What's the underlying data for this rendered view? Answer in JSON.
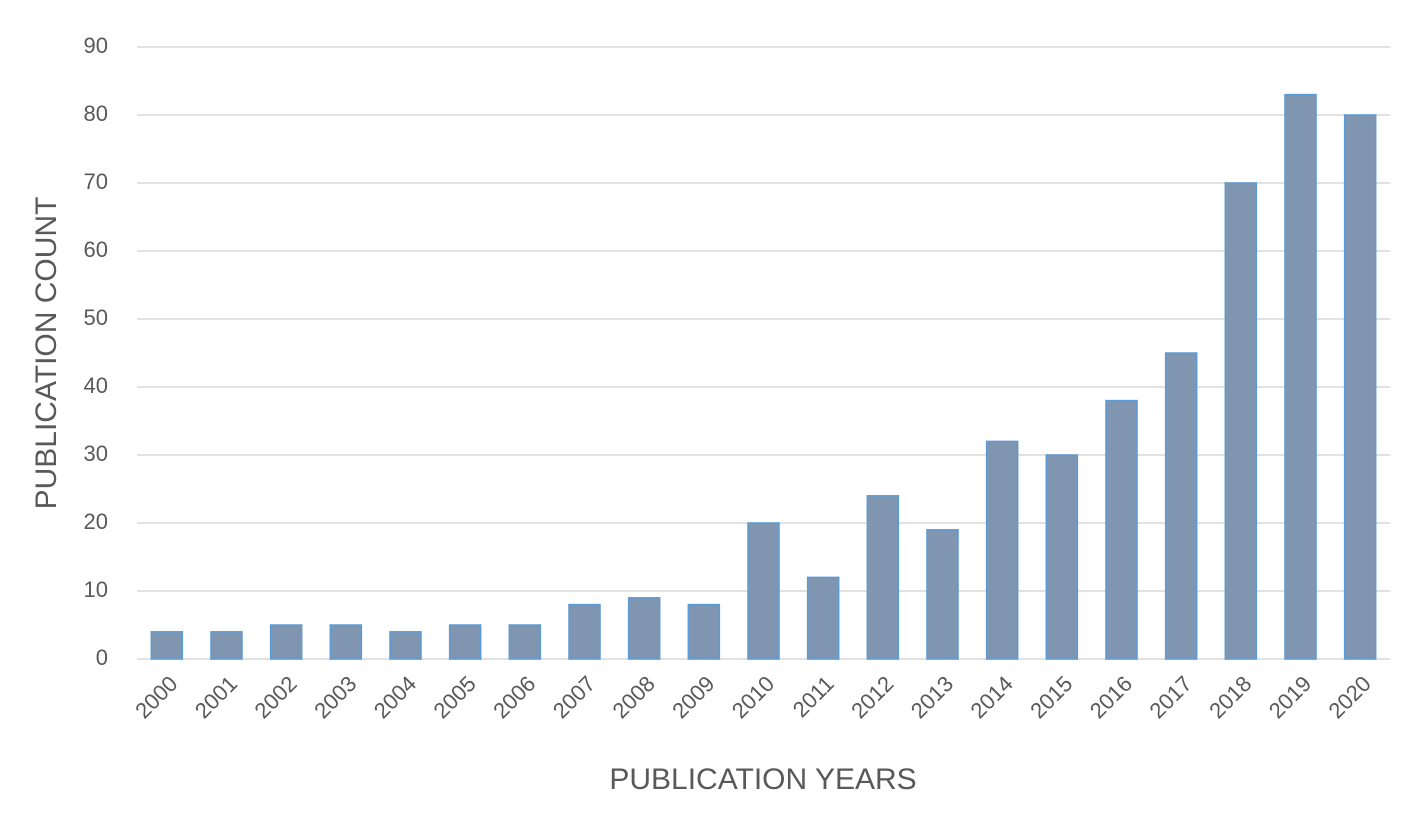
{
  "chart_data": {
    "type": "bar",
    "x_label": "PUBLICATION YEARS",
    "y_label": "PUBLICATION COUNT",
    "categories": [
      "2000",
      "2001",
      "2002",
      "2003",
      "2004",
      "2005",
      "2006",
      "2007",
      "2008",
      "2009",
      "2010",
      "2011",
      "2012",
      "2013",
      "2014",
      "2015",
      "2016",
      "2017",
      "2018",
      "2019",
      "2020"
    ],
    "values": [
      4,
      4,
      5,
      5,
      4,
      5,
      5,
      8,
      9,
      8,
      20,
      12,
      24,
      19,
      32,
      30,
      38,
      45,
      70,
      83,
      80
    ],
    "color": "#8096b0",
    "edge_color": "#5b9bd5",
    "ylim": [
      0,
      90
    ],
    "yticks": [
      0,
      10,
      20,
      30,
      40,
      50,
      60,
      70,
      80,
      90
    ],
    "grid": true
  }
}
